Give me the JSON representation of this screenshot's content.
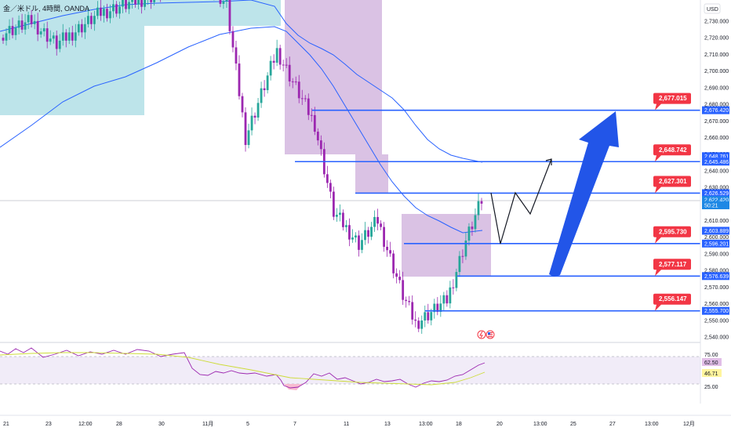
{
  "header": {
    "symbol_title": "金／米ドル, 4時間, OANDA",
    "currency": "USD"
  },
  "price_axis": {
    "ticks": [
      "2,730.000",
      "2,720.000",
      "2,710.000",
      "2,700.000",
      "2,690.000",
      "2,680.000",
      "2,670.000",
      "2,660.000",
      "2,650.000",
      "2,640.000",
      "2,630.000",
      "2,620.000",
      "2,610.000",
      "2,600.000",
      "2,590.000",
      "2,580.000",
      "2,570.000",
      "2,560.000",
      "2,550.000",
      "2,540.000"
    ],
    "tags": [
      {
        "label": "2,676.420",
        "price": 2676.42,
        "color": "#2962ff"
      },
      {
        "label": "2,648.761",
        "price": 2648.761,
        "color": "#2962ff"
      },
      {
        "label": "2,645.486",
        "price": 2645.486,
        "color": "#2962ff"
      },
      {
        "label": "2,626.529",
        "price": 2626.529,
        "color": "#2962ff"
      },
      {
        "label": "2,622.420",
        "price": 2622.42,
        "color": "#1e88e5"
      },
      {
        "label": "50:21",
        "price": 2619.2,
        "color": "#1e88e5"
      },
      {
        "label": "2,603.889",
        "price": 2603.889,
        "color": "#2962ff"
      },
      {
        "label": "2,596.201",
        "price": 2596.201,
        "color": "#2962ff"
      },
      {
        "label": "2,576.639",
        "price": 2576.639,
        "color": "#2962ff"
      },
      {
        "label": "2,555.700",
        "price": 2555.7,
        "color": "#2962ff"
      }
    ]
  },
  "levels": [
    {
      "callout": "2,677.015",
      "price": 2676.42
    },
    {
      "callout": "2,648.742",
      "price": 2645.486
    },
    {
      "callout": "2,627.301",
      "price": 2626.529
    },
    {
      "callout": "2,595.730",
      "price": 2596.201
    },
    {
      "callout": "2,577.117",
      "price": 2576.639
    },
    {
      "callout": "2,556.147",
      "price": 2555.7
    }
  ],
  "rsi": {
    "ticks": [
      "75.00",
      "25.00"
    ],
    "value_tag": "62.50",
    "ma_tag": "46.71",
    "value_color": "#e1bee7",
    "ma_color": "#fff59d"
  },
  "time_axis": {
    "labels": [
      "21",
      "23",
      "12:00",
      "28",
      "30",
      "11月",
      "5",
      "7",
      "11",
      "13",
      "13:00",
      "18",
      "20",
      "13:00",
      "25",
      "27",
      "13:00",
      "12月"
    ]
  },
  "colors": {
    "up": "#26a69a",
    "down": "#9c27b0",
    "level_line": "#2962ff",
    "callout": "#f23645",
    "big_arrow": "#2255e8",
    "zone_teal": "#b2dfe6",
    "zone_purple": "#d1b3dd"
  },
  "indicators": {
    "fx_icon": "lightning-icon",
    "flag_icon": "us-flag-icon"
  }
}
